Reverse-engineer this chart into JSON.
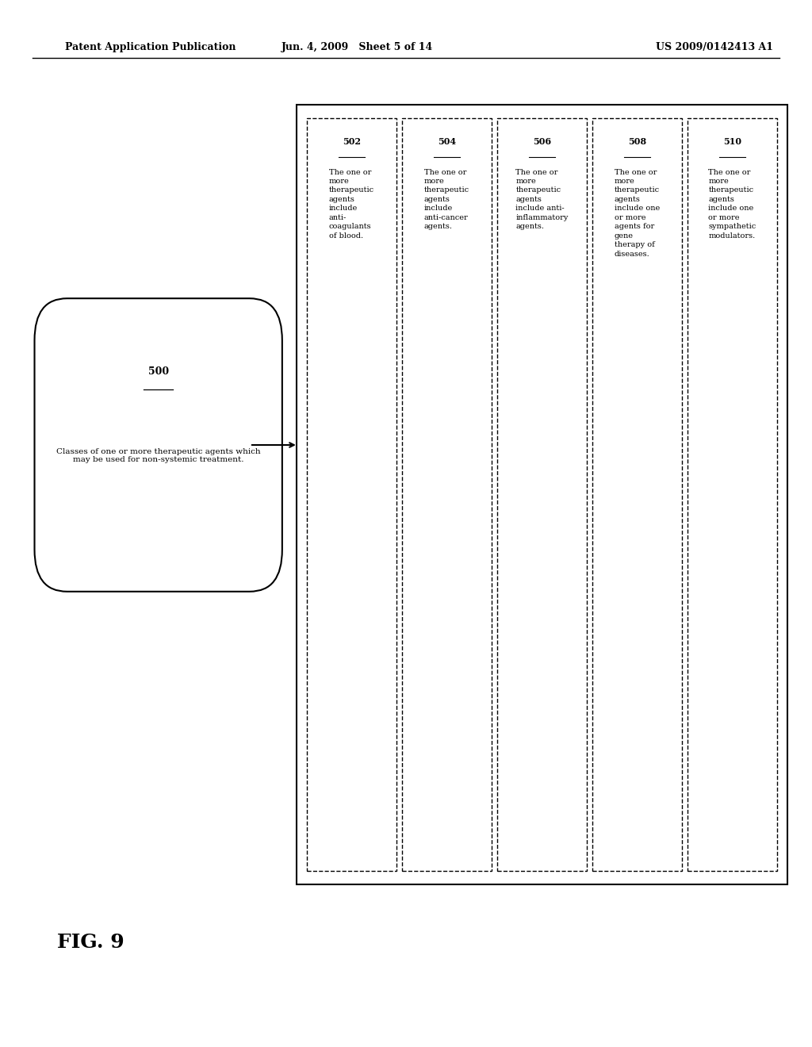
{
  "header_left": "Patent Application Publication",
  "header_mid": "Jun. 4, 2009   Sheet 5 of 14",
  "header_right": "US 2009/0142413 A1",
  "fig_label": "FIG. 9",
  "oval_label": "500",
  "oval_text": "Classes of one or more therapeutic agents which\nmay be used for non-systemic treatment.",
  "boxes": [
    {
      "id": "502",
      "lines": [
        "The one or",
        "more",
        "therapeutic",
        "agents",
        "include",
        "anti-",
        "coagulants",
        "of blood."
      ]
    },
    {
      "id": "504",
      "lines": [
        "The one or",
        "more",
        "therapeutic",
        "agents",
        "include",
        "anti-cancer",
        "agents."
      ]
    },
    {
      "id": "506",
      "lines": [
        "The one or",
        "more",
        "therapeutic",
        "agents",
        "include anti-",
        "inflammatory",
        "agents."
      ]
    },
    {
      "id": "508",
      "lines": [
        "The one or",
        "more",
        "therapeutic",
        "agents",
        "include one",
        "or more",
        "agents for",
        "gene",
        "therapy of",
        "diseases."
      ]
    },
    {
      "id": "510",
      "lines": [
        "The one or",
        "more",
        "therapeutic",
        "agents",
        "include one",
        "or more",
        "sympathetic",
        "modulators."
      ]
    }
  ],
  "background_color": "#ffffff",
  "text_color": "#000000"
}
